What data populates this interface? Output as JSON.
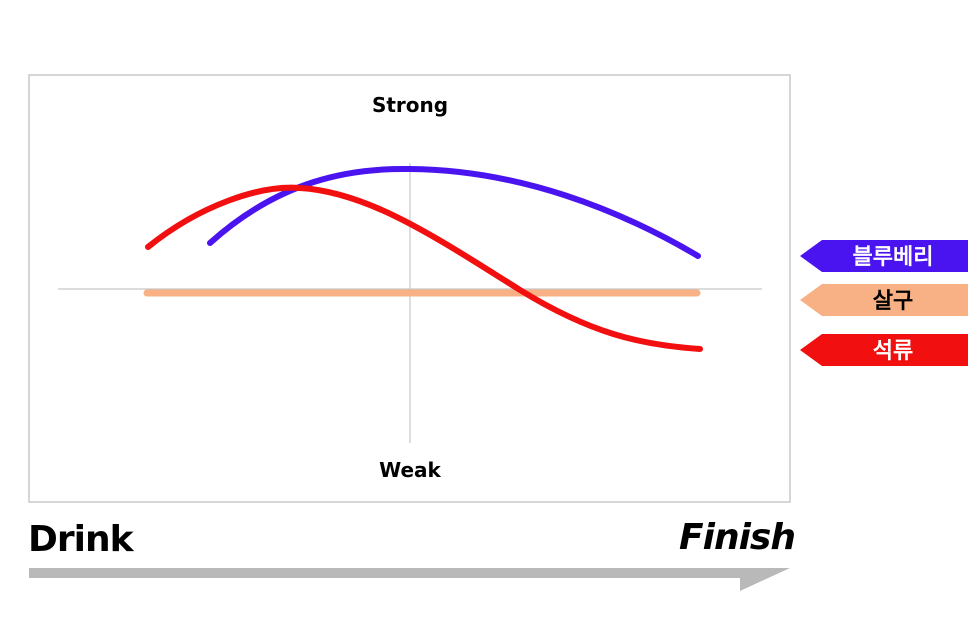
{
  "axis": {
    "top": "Strong",
    "bottom": "Weak"
  },
  "timeline": {
    "start": "Drink",
    "end": "Finish"
  },
  "legend": [
    {
      "label": "블루베리",
      "color": "#4a14f0",
      "text_color": "#ffffff"
    },
    {
      "label": "살구",
      "color": "#f7b185",
      "text_color": "#000000"
    },
    {
      "label": "석류",
      "color": "#f20f0f",
      "text_color": "#ffffff"
    }
  ]
}
